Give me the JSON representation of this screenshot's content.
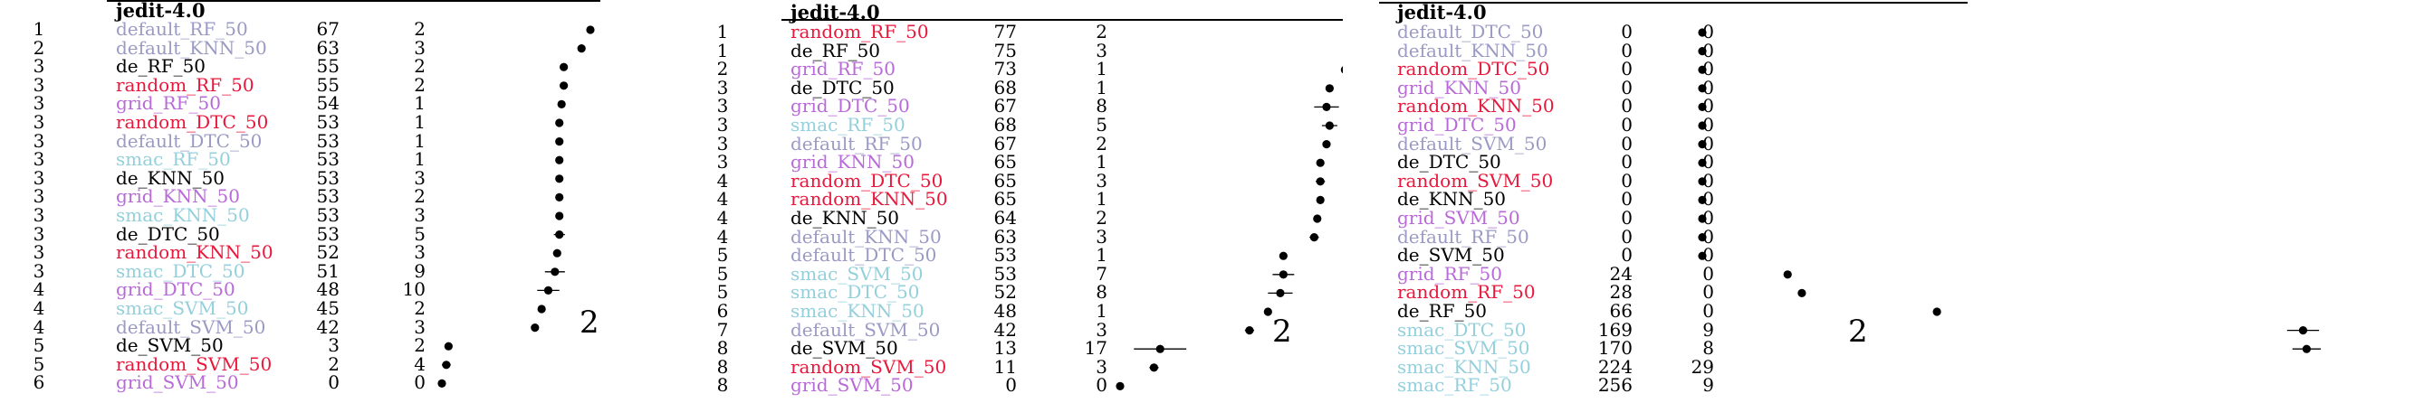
{
  "colors": {
    "default": "#9a9ac4",
    "de": "#000000",
    "random": "#e8183c",
    "grid": "#b86ad8",
    "smac": "#94d0dc"
  },
  "panels": [
    {
      "title": "jedit-4.0",
      "axis_label": "2",
      "rows": [
        {
          "rank": "1",
          "name": "default_RF_50",
          "group": "default",
          "v1": 67,
          "v2": 2
        },
        {
          "rank": "2",
          "name": "default_KNN_50",
          "group": "default",
          "v1": 63,
          "v2": 3
        },
        {
          "rank": "3",
          "name": "de_RF_50",
          "group": "de",
          "v1": 55,
          "v2": 2
        },
        {
          "rank": "3",
          "name": "random_RF_50",
          "group": "random",
          "v1": 55,
          "v2": 2
        },
        {
          "rank": "3",
          "name": "grid_RF_50",
          "group": "grid",
          "v1": 54,
          "v2": 1
        },
        {
          "rank": "3",
          "name": "random_DTC_50",
          "group": "random",
          "v1": 53,
          "v2": 1
        },
        {
          "rank": "3",
          "name": "default_DTC_50",
          "group": "default",
          "v1": 53,
          "v2": 1
        },
        {
          "rank": "3",
          "name": "smac_RF_50",
          "group": "smac",
          "v1": 53,
          "v2": 1
        },
        {
          "rank": "3",
          "name": "de_KNN_50",
          "group": "de",
          "v1": 53,
          "v2": 3
        },
        {
          "rank": "3",
          "name": "grid_KNN_50",
          "group": "grid",
          "v1": 53,
          "v2": 2
        },
        {
          "rank": "3",
          "name": "smac_KNN_50",
          "group": "smac",
          "v1": 53,
          "v2": 3
        },
        {
          "rank": "3",
          "name": "de_DTC_50",
          "group": "de",
          "v1": 53,
          "v2": 5
        },
        {
          "rank": "3",
          "name": "random_KNN_50",
          "group": "random",
          "v1": 52,
          "v2": 3
        },
        {
          "rank": "3",
          "name": "smac_DTC_50",
          "group": "smac",
          "v1": 51,
          "v2": 9
        },
        {
          "rank": "4",
          "name": "grid_DTC_50",
          "group": "grid",
          "v1": 48,
          "v2": 10
        },
        {
          "rank": "4",
          "name": "smac_SVM_50",
          "group": "smac",
          "v1": 45,
          "v2": 2
        },
        {
          "rank": "4",
          "name": "default_SVM_50",
          "group": "default",
          "v1": 42,
          "v2": 3
        },
        {
          "rank": "5",
          "name": "de_SVM_50",
          "group": "de",
          "v1": 3,
          "v2": 2
        },
        {
          "rank": "5",
          "name": "random_SVM_50",
          "group": "random",
          "v1": 2,
          "v2": 4
        },
        {
          "rank": "6",
          "name": "grid_SVM_50",
          "group": "grid",
          "v1": 0,
          "v2": 0
        }
      ]
    },
    {
      "title": "jedit-4.0",
      "axis_label": "2",
      "rows": [
        {
          "rank": "1",
          "name": "random_RF_50",
          "group": "random",
          "v1": 77,
          "v2": 2
        },
        {
          "rank": "1",
          "name": "de_RF_50",
          "group": "de",
          "v1": 75,
          "v2": 3
        },
        {
          "rank": "2",
          "name": "grid_RF_50",
          "group": "grid",
          "v1": 73,
          "v2": 1
        },
        {
          "rank": "3",
          "name": "de_DTC_50",
          "group": "de",
          "v1": 68,
          "v2": 1
        },
        {
          "rank": "3",
          "name": "grid_DTC_50",
          "group": "grid",
          "v1": 67,
          "v2": 8
        },
        {
          "rank": "3",
          "name": "smac_RF_50",
          "group": "smac",
          "v1": 68,
          "v2": 5
        },
        {
          "rank": "3",
          "name": "default_RF_50",
          "group": "default",
          "v1": 67,
          "v2": 2
        },
        {
          "rank": "3",
          "name": "grid_KNN_50",
          "group": "grid",
          "v1": 65,
          "v2": 1
        },
        {
          "rank": "4",
          "name": "random_DTC_50",
          "group": "random",
          "v1": 65,
          "v2": 3
        },
        {
          "rank": "4",
          "name": "random_KNN_50",
          "group": "random",
          "v1": 65,
          "v2": 1
        },
        {
          "rank": "4",
          "name": "de_KNN_50",
          "group": "de",
          "v1": 64,
          "v2": 2
        },
        {
          "rank": "4",
          "name": "default_KNN_50",
          "group": "default",
          "v1": 63,
          "v2": 3
        },
        {
          "rank": "5",
          "name": "default_DTC_50",
          "group": "default",
          "v1": 53,
          "v2": 1
        },
        {
          "rank": "5",
          "name": "smac_SVM_50",
          "group": "smac",
          "v1": 53,
          "v2": 7
        },
        {
          "rank": "5",
          "name": "smac_DTC_50",
          "group": "smac",
          "v1": 52,
          "v2": 8
        },
        {
          "rank": "6",
          "name": "smac_KNN_50",
          "group": "smac",
          "v1": 48,
          "v2": 1
        },
        {
          "rank": "7",
          "name": "default_SVM_50",
          "group": "default",
          "v1": 42,
          "v2": 3
        },
        {
          "rank": "8",
          "name": "de_SVM_50",
          "group": "de",
          "v1": 13,
          "v2": 17
        },
        {
          "rank": "8",
          "name": "random_SVM_50",
          "group": "random",
          "v1": 11,
          "v2": 3
        },
        {
          "rank": "8",
          "name": "grid_SVM_50",
          "group": "grid",
          "v1": 0,
          "v2": 0
        }
      ]
    },
    {
      "title": "jedit-4.0",
      "axis_label": "2",
      "rows": [
        {
          "rank": "",
          "name": "default_DTC_50",
          "group": "default",
          "v1": 0,
          "v2": 0
        },
        {
          "rank": "",
          "name": "default_KNN_50",
          "group": "default",
          "v1": 0,
          "v2": 0
        },
        {
          "rank": "",
          "name": "random_DTC_50",
          "group": "random",
          "v1": 0,
          "v2": 0
        },
        {
          "rank": "",
          "name": "grid_KNN_50",
          "group": "grid",
          "v1": 0,
          "v2": 0
        },
        {
          "rank": "",
          "name": "random_KNN_50",
          "group": "random",
          "v1": 0,
          "v2": 0
        },
        {
          "rank": "",
          "name": "grid_DTC_50",
          "group": "grid",
          "v1": 0,
          "v2": 0
        },
        {
          "rank": "",
          "name": "default_SVM_50",
          "group": "default",
          "v1": 0,
          "v2": 0
        },
        {
          "rank": "",
          "name": "de_DTC_50",
          "group": "de",
          "v1": 0,
          "v2": 0
        },
        {
          "rank": "",
          "name": "random_SVM_50",
          "group": "random",
          "v1": 0,
          "v2": 0
        },
        {
          "rank": "",
          "name": "de_KNN_50",
          "group": "de",
          "v1": 0,
          "v2": 0
        },
        {
          "rank": "",
          "name": "grid_SVM_50",
          "group": "grid",
          "v1": 0,
          "v2": 0
        },
        {
          "rank": "",
          "name": "default_RF_50",
          "group": "default",
          "v1": 0,
          "v2": 0
        },
        {
          "rank": "",
          "name": "de_SVM_50",
          "group": "de",
          "v1": 0,
          "v2": 0
        },
        {
          "rank": "",
          "name": "grid_RF_50",
          "group": "grid",
          "v1": 24,
          "v2": 0
        },
        {
          "rank": "",
          "name": "random_RF_50",
          "group": "random",
          "v1": 28,
          "v2": 0
        },
        {
          "rank": "",
          "name": "de_RF_50",
          "group": "de",
          "v1": 66,
          "v2": 0
        },
        {
          "rank": "",
          "name": "smac_DTC_50",
          "group": "smac",
          "v1": 169,
          "v2": 9
        },
        {
          "rank": "",
          "name": "smac_SVM_50",
          "group": "smac",
          "v1": 170,
          "v2": 8
        },
        {
          "rank": "",
          "name": "smac_KNN_50",
          "group": "smac",
          "v1": 224,
          "v2": 29
        },
        {
          "rank": "",
          "name": "smac_RF_50",
          "group": "smac",
          "v1": 256,
          "v2": 9
        }
      ]
    }
  ]
}
